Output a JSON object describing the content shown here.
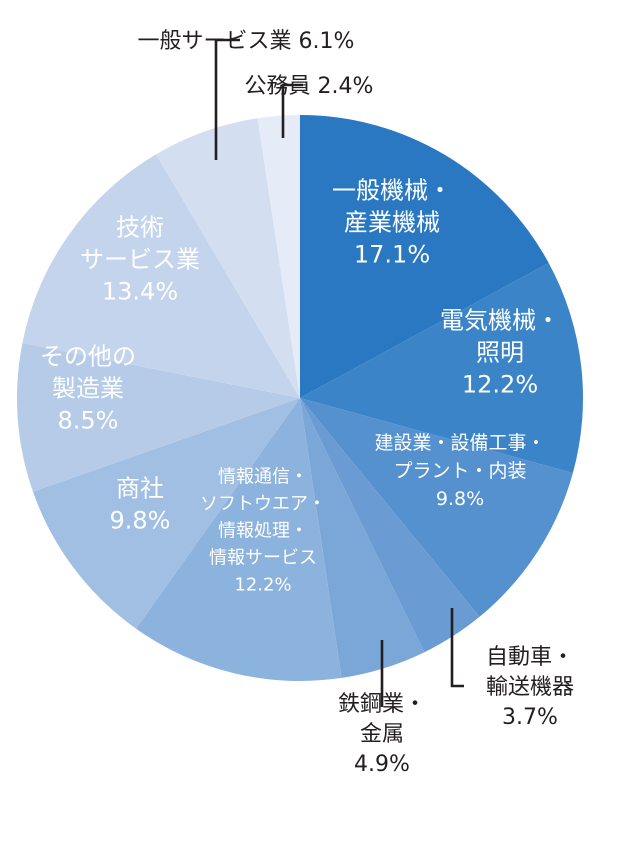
{
  "chart_data": {
    "type": "pie",
    "title": "",
    "start_angle_deg": 0,
    "direction": "clockwise",
    "slices": [
      {
        "lines": [
          "一般機械・",
          "産業機械",
          "17.1%"
        ],
        "value": 17.1,
        "color": "#2a78c2",
        "label_color": "#ffffff"
      },
      {
        "lines": [
          "電気機械・",
          "照明",
          "12.2%"
        ],
        "value": 12.2,
        "color": "#3b84c8",
        "label_color": "#ffffff"
      },
      {
        "lines": [
          "建設業・設備工事・",
          "プラント・内装",
          "9.8%"
        ],
        "value": 9.8,
        "color": "#5590cf",
        "label_color": "#ffffff"
      },
      {
        "lines": [
          "自動車・",
          "輸送機器",
          "3.7%"
        ],
        "value": 3.7,
        "color": "#6a9bd3",
        "label_color": "#231f20"
      },
      {
        "lines": [
          "鉄鋼業・",
          "金属",
          "4.9%"
        ],
        "value": 4.9,
        "color": "#7aa6d8",
        "label_color": "#231f20"
      },
      {
        "lines": [
          "情報通信・",
          "ソフトウエア・",
          "情報処理・",
          "情報サービス",
          "12.2%"
        ],
        "value": 12.2,
        "color": "#8cb2de",
        "label_color": "#ffffff"
      },
      {
        "lines": [
          "商社",
          "9.8%"
        ],
        "value": 9.8,
        "color": "#a1bfe3",
        "label_color": "#ffffff"
      },
      {
        "lines": [
          "その他の",
          "製造業",
          "8.5%"
        ],
        "value": 8.5,
        "color": "#b5cbe8",
        "label_color": "#ffffff"
      },
      {
        "lines": [
          "技術",
          "サービス業",
          "13.4%"
        ],
        "value": 13.4,
        "color": "#c4d4ec",
        "label_color": "#ffffff"
      },
      {
        "lines": [
          "一般サービス業 6.1%"
        ],
        "value": 6.1,
        "color": "#d3def1",
        "label_color": "#231f20"
      },
      {
        "lines": [
          "公務員 2.4%"
        ],
        "value": 2.4,
        "color": "#e5ecf7",
        "label_color": "#231f20"
      }
    ]
  }
}
